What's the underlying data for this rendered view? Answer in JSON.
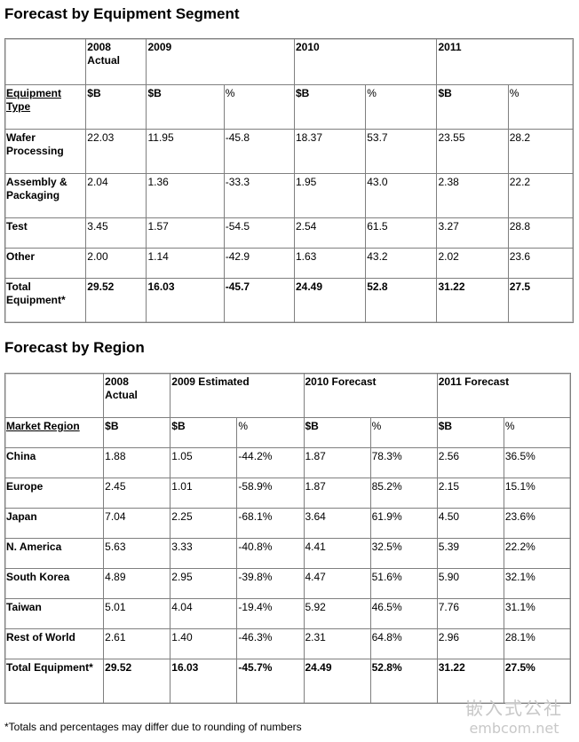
{
  "section1": {
    "title": "Forecast by Equipment Segment",
    "top_headers": [
      "",
      "2008\nActual",
      "2009",
      "2010",
      "2011"
    ],
    "sub_headers": [
      "Equipment Type",
      "$B",
      "$B",
      "%",
      "$B",
      "%",
      "$B",
      "%"
    ],
    "rows": [
      [
        "Wafer Processing",
        "22.03",
        "11.95",
        "-45.8",
        "18.37",
        "53.7",
        "23.55",
        "28.2"
      ],
      [
        "Assembly & Packaging",
        "2.04",
        "1.36",
        "-33.3",
        "1.95",
        "43.0",
        "2.38",
        "22.2"
      ],
      [
        "Test",
        "3.45",
        "1.57",
        "-54.5",
        "2.54",
        "61.5",
        "3.27",
        "28.8"
      ],
      [
        "Other",
        "2.00",
        "1.14",
        "-42.9",
        "1.63",
        "43.2",
        "2.02",
        "23.6"
      ],
      [
        "Total Equipment*",
        "29.52",
        "16.03",
        "-45.7",
        "24.49",
        "52.8",
        "31.22",
        "27.5"
      ]
    ]
  },
  "section2": {
    "title": "Forecast by Region",
    "top_headers": [
      "",
      "2008\nActual",
      "2009 Estimated",
      "2010 Forecast",
      "2011 Forecast"
    ],
    "sub_headers": [
      "Market Region",
      "$B",
      "$B",
      "%",
      "$B",
      "%",
      "$B",
      "%"
    ],
    "rows": [
      [
        "China",
        "1.88",
        "1.05",
        "-44.2%",
        "1.87",
        "78.3%",
        "2.56",
        "36.5%"
      ],
      [
        "Europe",
        "2.45",
        "1.01",
        "-58.9%",
        "1.87",
        "85.2%",
        "2.15",
        "15.1%"
      ],
      [
        "Japan",
        "7.04",
        "2.25",
        "-68.1%",
        "3.64",
        "61.9%",
        "4.50",
        "23.6%"
      ],
      [
        "N. America",
        "5.63",
        "3.33",
        "-40.8%",
        "4.41",
        "32.5%",
        "5.39",
        "22.2%"
      ],
      [
        "South Korea",
        "4.89",
        "2.95",
        "-39.8%",
        "4.47",
        "51.6%",
        "5.90",
        "32.1%"
      ],
      [
        "Taiwan",
        "5.01",
        "4.04",
        "-19.4%",
        "5.92",
        "46.5%",
        "7.76",
        "31.1%"
      ],
      [
        "Rest of World",
        "2.61",
        "1.40",
        "-46.3%",
        "2.31",
        "64.8%",
        "2.96",
        "28.1%"
      ],
      [
        "Total Equipment*",
        "29.52",
        "16.03",
        "-45.7%",
        "24.49",
        "52.8%",
        "31.22",
        "27.5%"
      ]
    ]
  },
  "footnote": "*Totals and percentages may differ due to rounding of numbers",
  "watermark": {
    "line1": "嵌入式公社",
    "line2": "embcom.net"
  }
}
